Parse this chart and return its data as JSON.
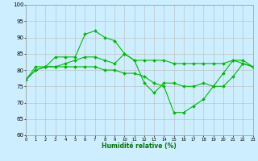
{
  "x": [
    0,
    1,
    2,
    3,
    4,
    5,
    6,
    7,
    8,
    9,
    10,
    11,
    12,
    13,
    14,
    15,
    16,
    17,
    18,
    19,
    20,
    21,
    22,
    23
  ],
  "line1": [
    77,
    81,
    81,
    84,
    84,
    84,
    91,
    92,
    90,
    89,
    85,
    83,
    83,
    83,
    83,
    82,
    82,
    82,
    82,
    82,
    82,
    83,
    83,
    81
  ],
  "line2": [
    77,
    80,
    81,
    81,
    82,
    83,
    84,
    84,
    83,
    82,
    85,
    83,
    76,
    73,
    76,
    76,
    75,
    75,
    76,
    75,
    79,
    83,
    82,
    81
  ],
  "line3": [
    77,
    80,
    81,
    81,
    81,
    81,
    81,
    81,
    80,
    80,
    79,
    79,
    78,
    76,
    75,
    67,
    67,
    69,
    71,
    75,
    75,
    78,
    82,
    81
  ],
  "line_color": "#00bb00",
  "bg_color": "#cceeff",
  "grid_color": "#bbbbbb",
  "xlabel": "Humidité relative (%)",
  "ylim": [
    60,
    100
  ],
  "xlim": [
    0,
    23
  ],
  "yticks": [
    60,
    65,
    70,
    75,
    80,
    85,
    90,
    95,
    100
  ],
  "xticks": [
    0,
    1,
    2,
    3,
    4,
    5,
    6,
    7,
    8,
    9,
    10,
    11,
    12,
    13,
    14,
    15,
    16,
    17,
    18,
    19,
    20,
    21,
    22,
    23
  ],
  "xlabel_fontsize": 5.5,
  "xlabel_color": "#007700",
  "tick_fontsize": 4.5,
  "linewidth": 0.8,
  "markersize": 2.0
}
